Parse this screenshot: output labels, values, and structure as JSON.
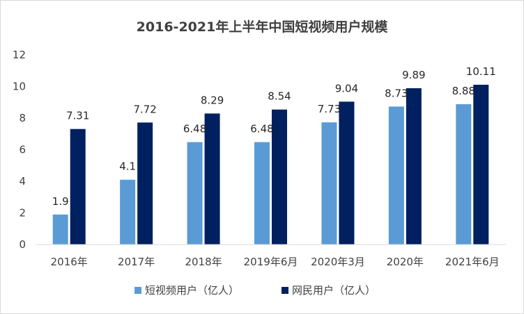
{
  "chart_data": {
    "type": "bar",
    "title": "2016-2021年上半年中国短视频用户规模",
    "categories": [
      "2016年",
      "2017年",
      "2018年",
      "2019年6月",
      "2020年3月",
      "2020年",
      "2021年6月"
    ],
    "series": [
      {
        "name": "短视频用户（亿人）",
        "values": [
          1.9,
          4.1,
          6.48,
          6.48,
          7.73,
          8.73,
          8.88
        ],
        "labels": [
          "1.9",
          "4.1",
          "6.48",
          "6.48",
          "7.73",
          "8.73",
          "8.88"
        ],
        "color": "#5b9bd5"
      },
      {
        "name": "网民用户（亿人）",
        "values": [
          7.31,
          7.72,
          8.29,
          8.54,
          9.04,
          9.89,
          10.11
        ],
        "labels": [
          "7.31",
          "7.72",
          "8.29",
          "8.54",
          "9.04",
          "9.89",
          "10.11"
        ],
        "color": "#002060"
      }
    ],
    "yticks": [
      "0",
      "2",
      "4",
      "6",
      "8",
      "10",
      "12"
    ],
    "ylim": [
      0,
      12
    ],
    "grid": false,
    "legend": "bottom"
  }
}
